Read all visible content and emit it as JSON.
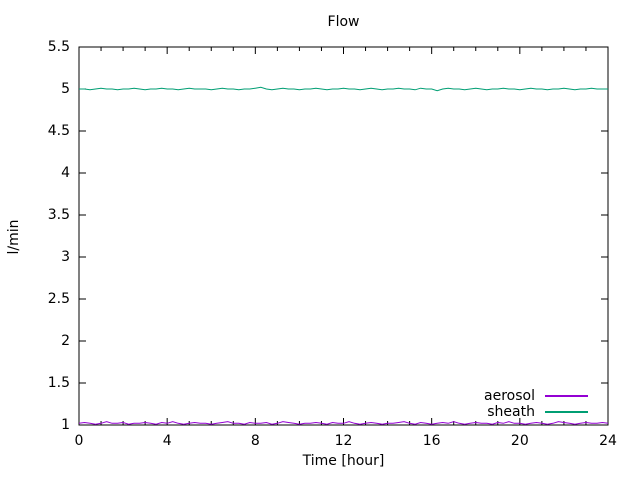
{
  "chart_data": {
    "type": "line",
    "title": "Flow",
    "xlabel": "Time [hour]",
    "ylabel": "l/min",
    "xlim": [
      0,
      24
    ],
    "ylim": [
      1,
      5.5
    ],
    "grid": false,
    "legend_position": "bottom-right-inside",
    "x_ticks": {
      "major": [
        0,
        4,
        8,
        12,
        16,
        20,
        24
      ],
      "minor_interval": 1,
      "labels": [
        "0",
        "4",
        "8",
        "12",
        "16",
        "20",
        "24"
      ]
    },
    "y_ticks": {
      "major": [
        1,
        1.5,
        2,
        2.5,
        3,
        3.5,
        4,
        4.5,
        5,
        5.5
      ],
      "labels": [
        "1",
        "1.5",
        "2",
        "2.5",
        "3",
        "3.5",
        "4",
        "4.5",
        "5",
        "5.5"
      ]
    },
    "border_color": "#000000",
    "sample_interval_hours": 0.25,
    "series": [
      {
        "name": "aerosol",
        "color": "#9400d3",
        "approx_level": 1.02,
        "values": [
          1.02,
          1.03,
          1.02,
          1.01,
          1.02,
          1.04,
          1.02,
          1.02,
          1.03,
          1.01,
          1.02,
          1.02,
          1.03,
          1.02,
          1.01,
          1.03,
          1.02,
          1.04,
          1.02,
          1.01,
          1.02,
          1.03,
          1.02,
          1.02,
          1.01,
          1.02,
          1.03,
          1.04,
          1.02,
          1.02,
          1.01,
          1.03,
          1.02,
          1.02,
          1.03,
          1.01,
          1.02,
          1.04,
          1.03,
          1.02,
          1.01,
          1.02,
          1.02,
          1.03,
          1.02,
          1.01,
          1.03,
          1.02,
          1.02,
          1.04,
          1.02,
          1.01,
          1.02,
          1.03,
          1.02,
          1.01,
          1.02,
          1.02,
          1.03,
          1.04,
          1.02,
          1.01,
          1.03,
          1.02,
          1.01,
          1.02,
          1.03,
          1.02,
          1.04,
          1.02,
          1.01,
          1.02,
          1.03,
          1.02,
          1.02,
          1.01,
          1.03,
          1.02,
          1.04,
          1.02,
          1.02,
          1.01,
          1.02,
          1.03,
          1.02,
          1.01,
          1.02,
          1.04,
          1.03,
          1.02,
          1.01,
          1.02,
          1.03,
          1.02,
          1.02,
          1.03,
          1.02
        ]
      },
      {
        "name": "sheath",
        "color": "#009e73",
        "approx_level": 5.0,
        "values": [
          5.0,
          5.0,
          4.99,
          5.0,
          5.01,
          5.0,
          5.0,
          4.99,
          5.0,
          5.0,
          5.01,
          5.0,
          4.99,
          5.0,
          5.0,
          5.01,
          5.0,
          5.0,
          4.99,
          5.0,
          5.01,
          5.0,
          5.0,
          5.0,
          4.99,
          5.0,
          5.01,
          5.0,
          5.0,
          4.99,
          5.0,
          5.0,
          5.01,
          5.02,
          5.0,
          4.99,
          5.0,
          5.01,
          5.0,
          5.0,
          4.99,
          5.0,
          5.0,
          5.01,
          5.0,
          4.99,
          5.0,
          5.0,
          5.01,
          5.0,
          5.0,
          4.99,
          5.0,
          5.01,
          5.0,
          4.99,
          5.0,
          5.0,
          5.01,
          5.0,
          5.0,
          4.99,
          5.01,
          5.0,
          5.0,
          4.98,
          5.0,
          5.01,
          5.0,
          5.0,
          4.99,
          5.0,
          5.01,
          5.0,
          4.99,
          5.0,
          5.0,
          5.01,
          5.0,
          5.0,
          4.99,
          5.0,
          5.01,
          5.0,
          5.0,
          4.99,
          5.0,
          5.0,
          5.01,
          5.0,
          4.99,
          5.0,
          5.0,
          5.01,
          5.0,
          5.0,
          5.0
        ]
      }
    ]
  }
}
